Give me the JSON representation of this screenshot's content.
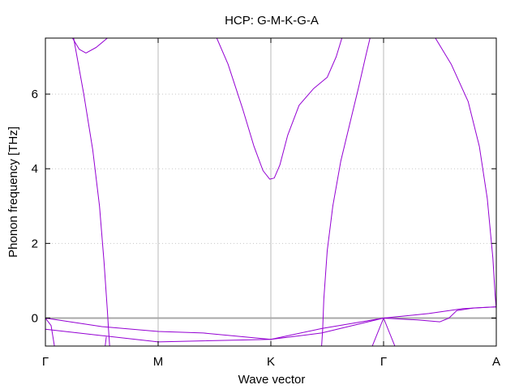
{
  "chart_data": {
    "type": "line",
    "title": "HCP: G-M-K-G-A",
    "xlabel": "Wave vector",
    "ylabel": "Phonon frequency [THz]",
    "ylim": [
      -0.75,
      7.5
    ],
    "xlim": [
      0,
      4
    ],
    "yticks": [
      0,
      2,
      4,
      6
    ],
    "ytick_labels": [
      "0",
      "2",
      "4",
      "6"
    ],
    "xticks": [
      0,
      1,
      2,
      3,
      4
    ],
    "xtick_labels": [
      "Γ",
      "M",
      "K",
      "Γ",
      "A"
    ],
    "vertical_grid": [
      1,
      2,
      3
    ],
    "horizontal_grid": "dotted",
    "zero_line": true,
    "line_color": "#9400d3",
    "series": [
      {
        "points": [
          [
            0.24,
            7.5
          ],
          [
            0.3,
            7.2
          ],
          [
            0.36,
            7.1
          ],
          [
            0.45,
            7.25
          ],
          [
            0.55,
            7.5
          ]
        ]
      },
      {
        "points": [
          [
            0.25,
            7.5
          ],
          [
            0.34,
            6.0
          ],
          [
            0.42,
            4.5
          ],
          [
            0.48,
            3.0
          ],
          [
            0.52,
            1.5
          ],
          [
            0.55,
            0.2
          ],
          [
            0.56,
            -0.3
          ],
          [
            0.57,
            -0.75
          ]
        ]
      },
      {
        "points": [
          [
            1.52,
            7.5
          ],
          [
            1.62,
            6.8
          ],
          [
            1.75,
            5.6
          ],
          [
            1.85,
            4.6
          ],
          [
            1.93,
            3.95
          ],
          [
            1.99,
            3.72
          ],
          [
            2.03,
            3.75
          ],
          [
            2.08,
            4.1
          ],
          [
            2.15,
            4.9
          ],
          [
            2.25,
            5.7
          ],
          [
            2.38,
            6.15
          ],
          [
            2.5,
            6.45
          ],
          [
            2.58,
            7.0
          ],
          [
            2.63,
            7.5
          ]
        ]
      },
      {
        "points": [
          [
            2.45,
            -0.75
          ],
          [
            2.46,
            -0.3
          ],
          [
            2.47,
            0.5
          ],
          [
            2.5,
            1.8
          ],
          [
            2.55,
            3.0
          ],
          [
            2.62,
            4.2
          ],
          [
            2.7,
            5.2
          ],
          [
            2.78,
            6.2
          ],
          [
            2.84,
            7.0
          ],
          [
            2.88,
            7.5
          ]
        ]
      },
      {
        "points": [
          [
            3.46,
            7.5
          ],
          [
            3.6,
            6.8
          ],
          [
            3.75,
            5.8
          ],
          [
            3.85,
            4.6
          ],
          [
            3.92,
            3.2
          ],
          [
            3.97,
            1.6
          ],
          [
            3.99,
            0.6
          ],
          [
            4.0,
            0.25
          ]
        ]
      },
      {
        "points": [
          [
            0,
            0
          ],
          [
            0.5,
            -0.23
          ],
          [
            1,
            -0.36
          ],
          [
            1.4,
            -0.4
          ],
          [
            2,
            -0.57
          ],
          [
            2.45,
            -0.4
          ],
          [
            3,
            0
          ]
        ]
      },
      {
        "points": [
          [
            0,
            -0.3
          ],
          [
            0.5,
            -0.47
          ],
          [
            1,
            -0.64
          ],
          [
            2,
            -0.57
          ],
          [
            2.45,
            -0.28
          ],
          [
            3,
            0
          ]
        ]
      },
      {
        "points": [
          [
            3,
            0
          ],
          [
            3.4,
            0.12
          ],
          [
            3.7,
            0.25
          ],
          [
            4,
            0.3
          ]
        ]
      },
      {
        "points": [
          [
            3,
            0
          ],
          [
            3.3,
            -0.05
          ],
          [
            3.5,
            -0.1
          ],
          [
            3.58,
            0.0
          ],
          [
            3.65,
            0.2
          ],
          [
            3.8,
            0.27
          ],
          [
            4,
            0.3
          ]
        ]
      },
      {
        "points": [
          [
            3,
            0
          ],
          [
            3.1,
            -0.75
          ]
        ]
      },
      {
        "points": [
          [
            3,
            0
          ],
          [
            2.9,
            -0.75
          ]
        ]
      },
      {
        "points": [
          [
            0,
            0
          ],
          [
            0.05,
            -0.2
          ],
          [
            0.08,
            -0.75
          ]
        ]
      },
      {
        "points": [
          [
            0.53,
            -0.75
          ],
          [
            0.54,
            -0.5
          ]
        ]
      }
    ]
  }
}
